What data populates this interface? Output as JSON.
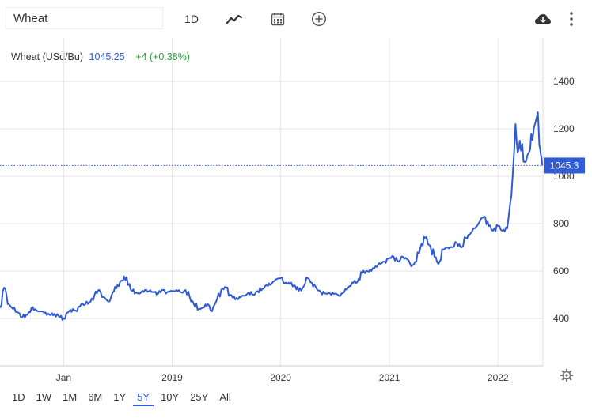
{
  "toolbar": {
    "symbol_value": "Wheat",
    "interval_label": "1D",
    "icons": [
      "line-chart-icon",
      "calendar-icon",
      "plus-circle-icon",
      "cloud-download-icon",
      "more-vertical-icon"
    ]
  },
  "legend": {
    "name": "Wheat (USd/Bu)",
    "price": "1045.25",
    "change": "+4 (+0.38%)"
  },
  "range_buttons": [
    {
      "label": "1D"
    },
    {
      "label": "1W"
    },
    {
      "label": "1M"
    },
    {
      "label": "6M"
    },
    {
      "label": "1Y"
    },
    {
      "label": "5Y",
      "active": true
    },
    {
      "label": "10Y"
    },
    {
      "label": "25Y"
    },
    {
      "label": "All"
    }
  ],
  "colors": {
    "line": "#2f5bd6",
    "price_tag": "#2f5bd6",
    "positive": "#2e9c3c",
    "grid": "#e6e6e6"
  },
  "chart_data": {
    "type": "line",
    "title": "",
    "xlabel": "",
    "ylabel": "",
    "ylim": [
      200,
      1600
    ],
    "yticks": [
      400,
      600,
      800,
      1000,
      1200,
      1400
    ],
    "xticks": [
      {
        "label": "Jan",
        "date": "2018-01-01"
      },
      {
        "label": "2019",
        "date": "2019-01-01"
      },
      {
        "label": "2020",
        "date": "2020-01-01"
      },
      {
        "label": "2021",
        "date": "2021-01-01"
      },
      {
        "label": "2022",
        "date": "2022-01-01"
      }
    ],
    "last_value_label": "1045.3",
    "last_value": 1045.25,
    "grid": true,
    "series": [
      {
        "x": [
          "2017-06-01",
          "2017-06-15",
          "2017-07-01",
          "2017-07-15",
          "2017-08-01",
          "2017-08-15",
          "2017-09-01",
          "2017-09-15",
          "2017-10-01",
          "2017-10-15",
          "2017-11-01",
          "2017-11-15",
          "2017-12-01",
          "2017-12-15",
          "2018-01-01",
          "2018-01-15",
          "2018-02-01",
          "2018-02-15",
          "2018-03-01",
          "2018-03-15",
          "2018-04-01",
          "2018-04-15",
          "2018-05-01",
          "2018-05-15",
          "2018-06-01",
          "2018-06-15",
          "2018-07-01",
          "2018-07-15",
          "2018-08-01",
          "2018-08-15",
          "2018-09-01",
          "2018-09-15",
          "2018-10-01",
          "2018-10-15",
          "2018-11-01",
          "2018-11-15",
          "2018-12-01",
          "2018-12-15",
          "2019-01-01",
          "2019-01-15",
          "2019-02-01",
          "2019-02-15",
          "2019-03-01",
          "2019-03-15",
          "2019-04-01",
          "2019-04-15",
          "2019-05-01",
          "2019-05-15",
          "2019-06-01",
          "2019-06-15",
          "2019-07-01",
          "2019-07-15",
          "2019-08-01",
          "2019-08-15",
          "2019-09-01",
          "2019-09-15",
          "2019-10-01",
          "2019-10-15",
          "2019-11-01",
          "2019-11-15",
          "2019-12-01",
          "2019-12-15",
          "2020-01-01",
          "2020-01-15",
          "2020-02-01",
          "2020-02-15",
          "2020-03-01",
          "2020-03-15",
          "2020-04-01",
          "2020-04-15",
          "2020-05-01",
          "2020-05-15",
          "2020-06-01",
          "2020-06-15",
          "2020-07-01",
          "2020-07-15",
          "2020-08-01",
          "2020-08-15",
          "2020-09-01",
          "2020-09-15",
          "2020-10-01",
          "2020-10-15",
          "2020-11-01",
          "2020-11-15",
          "2020-12-01",
          "2020-12-15",
          "2021-01-01",
          "2021-01-15",
          "2021-02-01",
          "2021-02-15",
          "2021-03-01",
          "2021-03-15",
          "2021-04-01",
          "2021-04-15",
          "2021-05-01",
          "2021-05-15",
          "2021-06-01",
          "2021-06-15",
          "2021-07-01",
          "2021-07-15",
          "2021-08-01",
          "2021-08-15",
          "2021-09-01",
          "2021-09-15",
          "2021-10-01",
          "2021-10-15",
          "2021-11-01",
          "2021-11-15",
          "2021-12-01",
          "2021-12-15",
          "2022-01-01",
          "2022-01-15",
          "2022-02-01",
          "2022-02-15",
          "2022-03-01",
          "2022-03-08",
          "2022-03-15",
          "2022-04-01",
          "2022-04-15",
          "2022-05-01",
          "2022-05-15",
          "2022-05-20",
          "2022-05-25",
          "2022-05-30"
        ],
        "y": [
          445,
          530,
          460,
          440,
          425,
          405,
          415,
          445,
          435,
          430,
          425,
          415,
          420,
          410,
          400,
          425,
          440,
          430,
          460,
          460,
          470,
          500,
          520,
          490,
          470,
          510,
          540,
          560,
          575,
          520,
          510,
          505,
          520,
          515,
          510,
          505,
          520,
          510,
          515,
          520,
          510,
          520,
          490,
          460,
          440,
          445,
          460,
          430,
          480,
          520,
          530,
          500,
          480,
          490,
          495,
          510,
          500,
          515,
          525,
          540,
          545,
          565,
          570,
          550,
          545,
          540,
          515,
          530,
          570,
          550,
          525,
          510,
          505,
          505,
          505,
          495,
          510,
          530,
          550,
          555,
          590,
          600,
          600,
          620,
          630,
          640,
          655,
          660,
          640,
          660,
          650,
          620,
          640,
          700,
          740,
          710,
          660,
          630,
          690,
          700,
          700,
          720,
          700,
          740,
          760,
          780,
          810,
          830,
          790,
          770,
          790,
          770,
          780,
          920,
          1220,
          1100,
          1150,
          1060,
          1100,
          1200,
          1270,
          1130,
          1090,
          1045
        ]
      }
    ]
  }
}
